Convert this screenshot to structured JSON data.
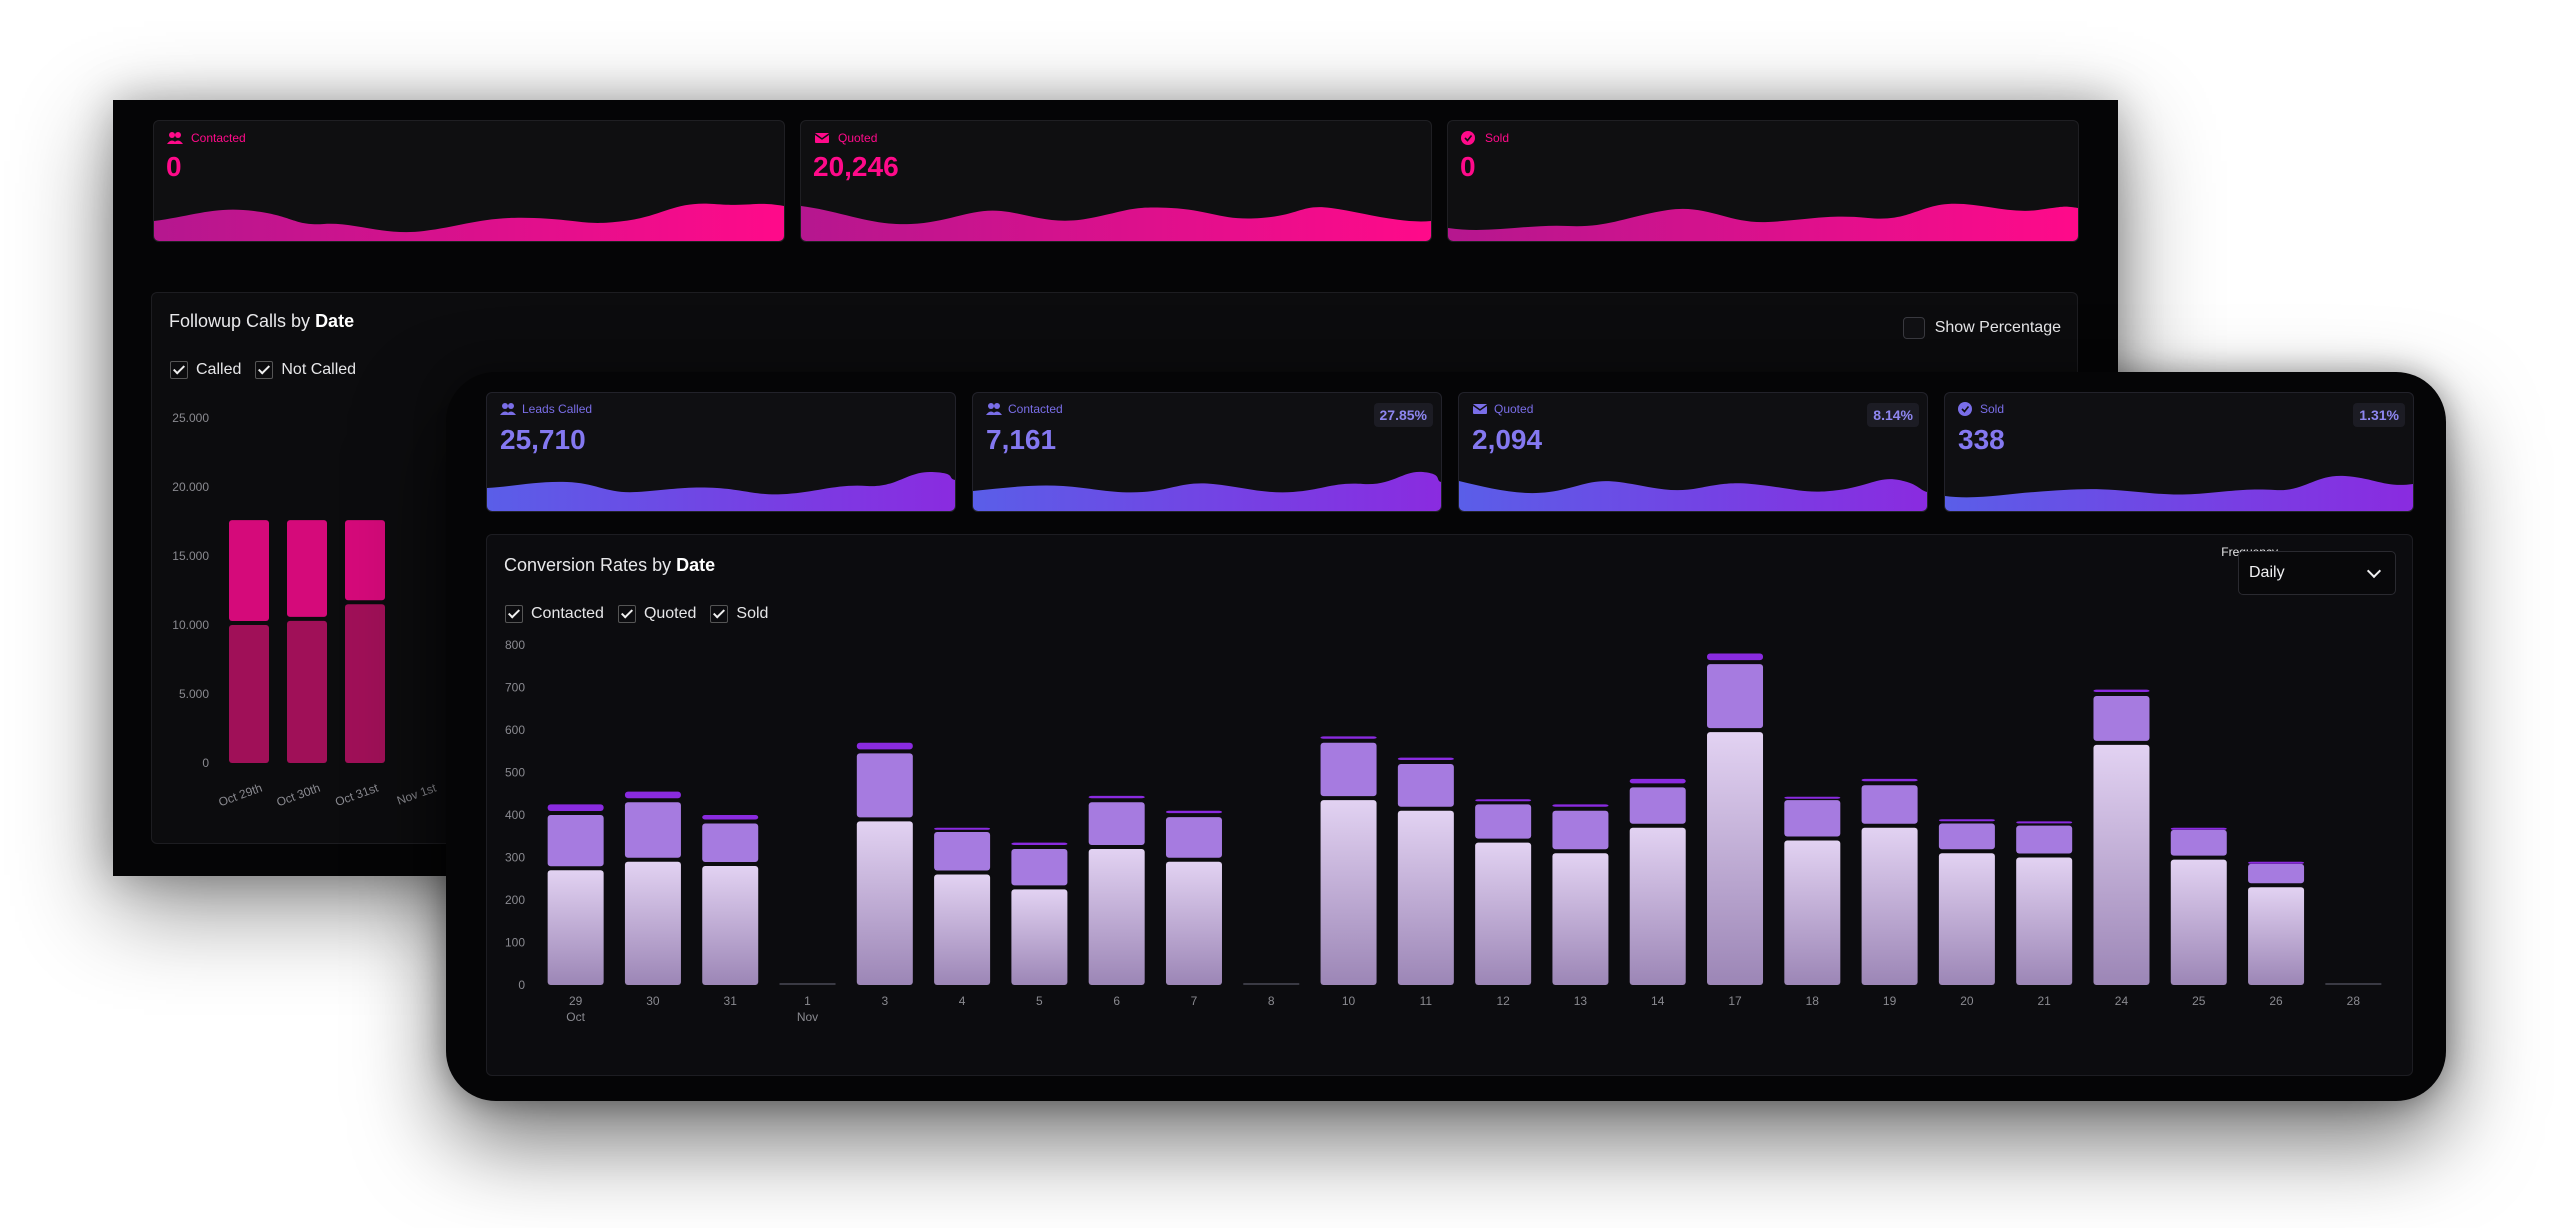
{
  "back": {
    "cards": [
      {
        "label": "Contacted",
        "value": "0",
        "icon": "users-icon"
      },
      {
        "label": "Quoted",
        "value": "20,246",
        "icon": "envelope-icon"
      },
      {
        "label": "Sold",
        "value": "0",
        "icon": "check-circle-icon"
      }
    ],
    "panel": {
      "title_prefix": "Followup Calls by ",
      "title_bold": "Date",
      "show_percentage_label": "Show Percentage",
      "legend": [
        "Called",
        "Not Called"
      ]
    },
    "chart_data": {
      "type": "bar",
      "stacked": true,
      "categories": [
        "Oct 29th",
        "Oct 30th",
        "Oct 31st",
        "Nov 1st"
      ],
      "y_ticks": [
        "0",
        "5.000",
        "10.000",
        "15.000",
        "20.000",
        "25.000"
      ],
      "ylim": [
        0,
        25000
      ],
      "series": [
        {
          "name": "Called",
          "values": [
            10000,
            10300,
            11500,
            0
          ]
        },
        {
          "name": "Not Called",
          "values": [
            7600,
            7300,
            6100,
            0
          ]
        }
      ],
      "colors": {
        "Called": "#a01058",
        "Not Called": "#d50a7a"
      }
    }
  },
  "front": {
    "cards": [
      {
        "label": "Leads Called",
        "value": "25,710",
        "pct": "",
        "icon": "users-icon"
      },
      {
        "label": "Contacted",
        "value": "7,161",
        "pct": "27.85%",
        "icon": "users-icon"
      },
      {
        "label": "Quoted",
        "value": "2,094",
        "pct": "8.14%",
        "icon": "envelope-icon"
      },
      {
        "label": "Sold",
        "value": "338",
        "pct": "1.31%",
        "icon": "check-circle-icon"
      }
    ],
    "panel": {
      "title_prefix": "Conversion Rates by ",
      "title_bold": "Date",
      "frequency_label": "Frequency",
      "frequency_value": "Daily",
      "legend": [
        "Contacted",
        "Quoted",
        "Sold"
      ]
    },
    "chart_data": {
      "type": "bar",
      "stacked": true,
      "categories": [
        "29",
        "30",
        "31",
        "1",
        "3",
        "4",
        "5",
        "6",
        "7",
        "8",
        "10",
        "11",
        "12",
        "13",
        "14",
        "17",
        "18",
        "19",
        "20",
        "21",
        "24",
        "25",
        "26",
        "28"
      ],
      "month_labels": {
        "29": "Oct",
        "1": "Nov"
      },
      "y_ticks": [
        "0",
        "100",
        "200",
        "300",
        "400",
        "500",
        "600",
        "700",
        "800"
      ],
      "ylim": [
        0,
        800
      ],
      "series": [
        {
          "name": "Contacted",
          "values": [
            270,
            290,
            280,
            0,
            385,
            260,
            225,
            320,
            290,
            0,
            435,
            410,
            335,
            310,
            370,
            595,
            340,
            370,
            310,
            300,
            565,
            295,
            230,
            0
          ]
        },
        {
          "name": "Quoted",
          "values": [
            130,
            140,
            100,
            0,
            160,
            100,
            95,
            110,
            105,
            0,
            135,
            110,
            90,
            100,
            95,
            160,
            95,
            100,
            70,
            75,
            115,
            70,
            55,
            0
          ]
        },
        {
          "name": "Sold",
          "values": [
            25,
            25,
            20,
            0,
            25,
            10,
            15,
            15,
            15,
            0,
            15,
            15,
            12,
            15,
            20,
            25,
            8,
            15,
            10,
            10,
            15,
            5,
            5,
            0
          ]
        }
      ],
      "colors": {
        "Contacted": "#c7b2e0",
        "Quoted": "#a67be0",
        "Sold": "#8a2be0"
      }
    }
  }
}
